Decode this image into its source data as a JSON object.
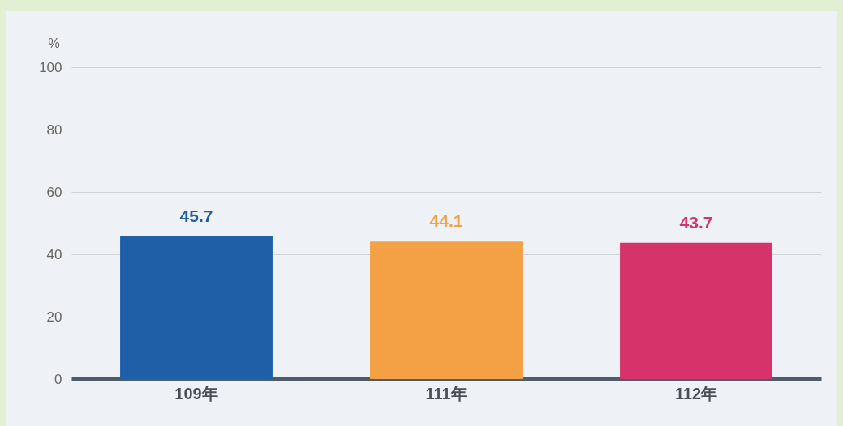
{
  "chart_data": {
    "type": "bar",
    "ylabel": "%",
    "categories": [
      "109年",
      "111年",
      "112年"
    ],
    "values": [
      45.7,
      44.1,
      43.7
    ],
    "colors": [
      "#1f5fa8",
      "#f4a045",
      "#d6336b"
    ],
    "ylim": [
      0,
      100
    ],
    "yticks": [
      0,
      20,
      40,
      60,
      80,
      100
    ],
    "grid": "y",
    "data_labels": true
  }
}
